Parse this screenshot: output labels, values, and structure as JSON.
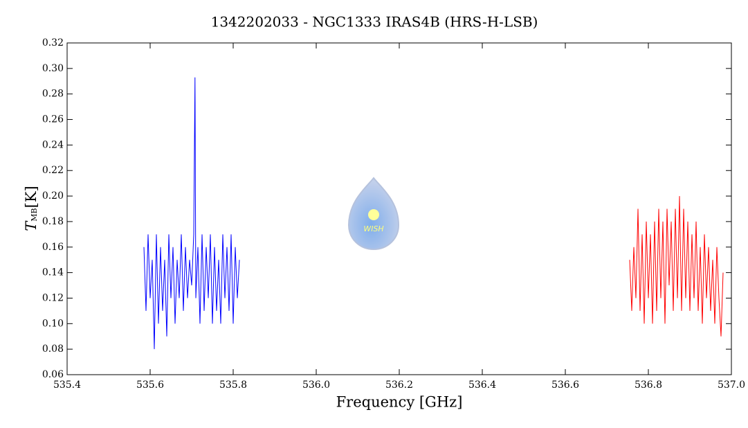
{
  "chart_data": {
    "type": "line",
    "title": "1342202033 - NGC1333 IRAS4B (HRS-H-LSB)",
    "xlabel": "Frequency [GHz]",
    "ylabel": {
      "symbol": "T",
      "subscript": "MB",
      "unit": "[K]"
    },
    "logo_text": "WISH",
    "xlim": [
      535.4,
      537.0
    ],
    "xticks": [
      535.4,
      535.6,
      535.8,
      {
        "value": 536,
        "label": "536.0"
      },
      536.2,
      536.4,
      536.6,
      536.8,
      {
        "value": 537,
        "label": "537.0"
      }
    ],
    "ylim": [
      0.06,
      0.32
    ],
    "yticks": [
      0.06,
      0.08,
      {
        "value": 0.1,
        "label": "0.10"
      },
      0.12,
      0.14,
      0.16,
      0.18,
      {
        "value": 0.2,
        "label": "0.20"
      },
      0.22,
      0.24,
      0.26,
      0.28,
      {
        "value": 0.3,
        "label": "0.30"
      },
      0.32
    ],
    "series": [
      {
        "color": "#0000ff",
        "x": [
          535.585,
          535.59,
          535.595,
          535.6,
          535.605,
          535.61,
          535.615,
          535.62,
          535.625,
          535.63,
          535.635,
          535.64,
          535.645,
          535.65,
          535.655,
          535.66,
          535.665,
          535.67,
          535.675,
          535.68,
          535.685,
          535.69,
          535.695,
          535.7,
          535.705,
          535.708,
          535.71,
          535.715,
          535.72,
          535.725,
          535.73,
          535.735,
          535.74,
          535.745,
          535.75,
          535.755,
          535.76,
          535.765,
          535.77,
          535.775,
          535.78,
          535.785,
          535.79,
          535.795,
          535.8,
          535.805,
          535.81,
          535.815
        ],
        "values": [
          0.16,
          0.11,
          0.17,
          0.12,
          0.15,
          0.08,
          0.17,
          0.1,
          0.16,
          0.11,
          0.15,
          0.09,
          0.17,
          0.12,
          0.16,
          0.1,
          0.15,
          0.12,
          0.17,
          0.11,
          0.16,
          0.12,
          0.15,
          0.13,
          0.17,
          0.293,
          0.12,
          0.16,
          0.1,
          0.17,
          0.11,
          0.16,
          0.12,
          0.17,
          0.1,
          0.16,
          0.11,
          0.15,
          0.1,
          0.17,
          0.12,
          0.16,
          0.11,
          0.17,
          0.1,
          0.16,
          0.12,
          0.15
        ]
      },
      {
        "color": "#ff0000",
        "x": [
          536.755,
          536.76,
          536.765,
          536.77,
          536.775,
          536.78,
          536.785,
          536.79,
          536.795,
          536.8,
          536.805,
          536.81,
          536.815,
          536.82,
          536.825,
          536.83,
          536.835,
          536.84,
          536.845,
          536.85,
          536.855,
          536.86,
          536.865,
          536.87,
          536.875,
          536.88,
          536.885,
          536.89,
          536.895,
          536.9,
          536.905,
          536.91,
          536.915,
          536.92,
          536.925,
          536.93,
          536.935,
          536.94,
          536.945,
          536.95,
          536.955,
          536.96,
          536.965,
          536.97,
          536.975,
          536.98
        ],
        "values": [
          0.15,
          0.11,
          0.16,
          0.12,
          0.19,
          0.11,
          0.17,
          0.1,
          0.18,
          0.12,
          0.17,
          0.1,
          0.18,
          0.11,
          0.19,
          0.12,
          0.18,
          0.1,
          0.19,
          0.13,
          0.18,
          0.11,
          0.19,
          0.12,
          0.2,
          0.11,
          0.19,
          0.12,
          0.18,
          0.11,
          0.17,
          0.12,
          0.18,
          0.11,
          0.16,
          0.1,
          0.17,
          0.12,
          0.16,
          0.11,
          0.15,
          0.1,
          0.16,
          0.12,
          0.09,
          0.14
        ]
      }
    ]
  }
}
